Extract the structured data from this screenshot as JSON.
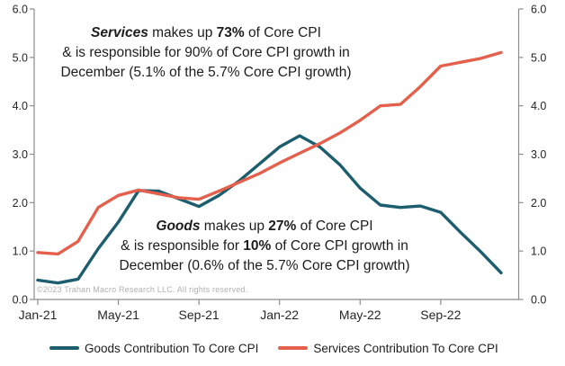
{
  "chart_data": {
    "type": "line",
    "title": "",
    "x": [
      "Jan-21",
      "Feb-21",
      "Mar-21",
      "Apr-21",
      "May-21",
      "Jun-21",
      "Jul-21",
      "Aug-21",
      "Sep-21",
      "Oct-21",
      "Nov-21",
      "Dec-21",
      "Jan-22",
      "Feb-22",
      "Mar-22",
      "Apr-22",
      "May-22",
      "Jun-22",
      "Jul-22",
      "Aug-22",
      "Sep-22",
      "Oct-22",
      "Nov-22",
      "Dec-22"
    ],
    "series": [
      {
        "name": "Goods Contribution To Core CPI",
        "color": "#1c5d6e",
        "values": [
          0.4,
          0.34,
          0.42,
          1.05,
          1.6,
          2.25,
          2.24,
          2.08,
          1.92,
          2.15,
          2.45,
          2.8,
          3.15,
          3.38,
          3.15,
          2.78,
          2.3,
          1.95,
          1.9,
          1.93,
          1.8,
          1.38,
          0.98,
          0.55
        ]
      },
      {
        "name": "Services Contribution To Core CPI",
        "color": "#e4604d",
        "values": [
          0.97,
          0.94,
          1.2,
          1.9,
          2.15,
          2.26,
          2.18,
          2.1,
          2.07,
          2.24,
          2.42,
          2.6,
          2.82,
          3.02,
          3.22,
          3.44,
          3.7,
          4.0,
          4.03,
          4.4,
          4.82,
          4.9,
          4.98,
          5.1
        ]
      }
    ],
    "ylim": [
      0,
      6
    ],
    "ytick_labels": [
      "0.0",
      "1.0",
      "2.0",
      "3.0",
      "4.0",
      "5.0",
      "6.0"
    ],
    "xticks_shown": [
      {
        "index": 0,
        "label": "Jan-21"
      },
      {
        "index": 4,
        "label": "May-21"
      },
      {
        "index": 8,
        "label": "Sep-21"
      },
      {
        "index": 12,
        "label": "Jan-22"
      },
      {
        "index": 16,
        "label": "May-22"
      },
      {
        "index": 20,
        "label": "Sep-22"
      }
    ],
    "grid": false,
    "dual_y_axis": true,
    "legend_position": "bottom",
    "axis_color": "#8c8c8c",
    "tick_label_color": "#262626"
  },
  "annotations": {
    "services": {
      "emph": "Services",
      "mid": " makes up ",
      "stat": "73%",
      "tail": " of Core CPI",
      "line2": "& is responsible for 90% of Core CPI growth in",
      "line3": "December (5.1% of the 5.7% Core CPI growth)"
    },
    "goods": {
      "emph": "Goods",
      "mid": " makes up ",
      "stat": "27%",
      "tail": " of Core CPI",
      "line2_head": "& is responsible for ",
      "line2_stat": "10%",
      "line2_tail": " of Core CPI growth in",
      "line3": "December (0.6% of the 5.7% Core CPI growth)"
    }
  },
  "copyright": "©2023 Trahan Macro Research LLC. All rights reserved."
}
